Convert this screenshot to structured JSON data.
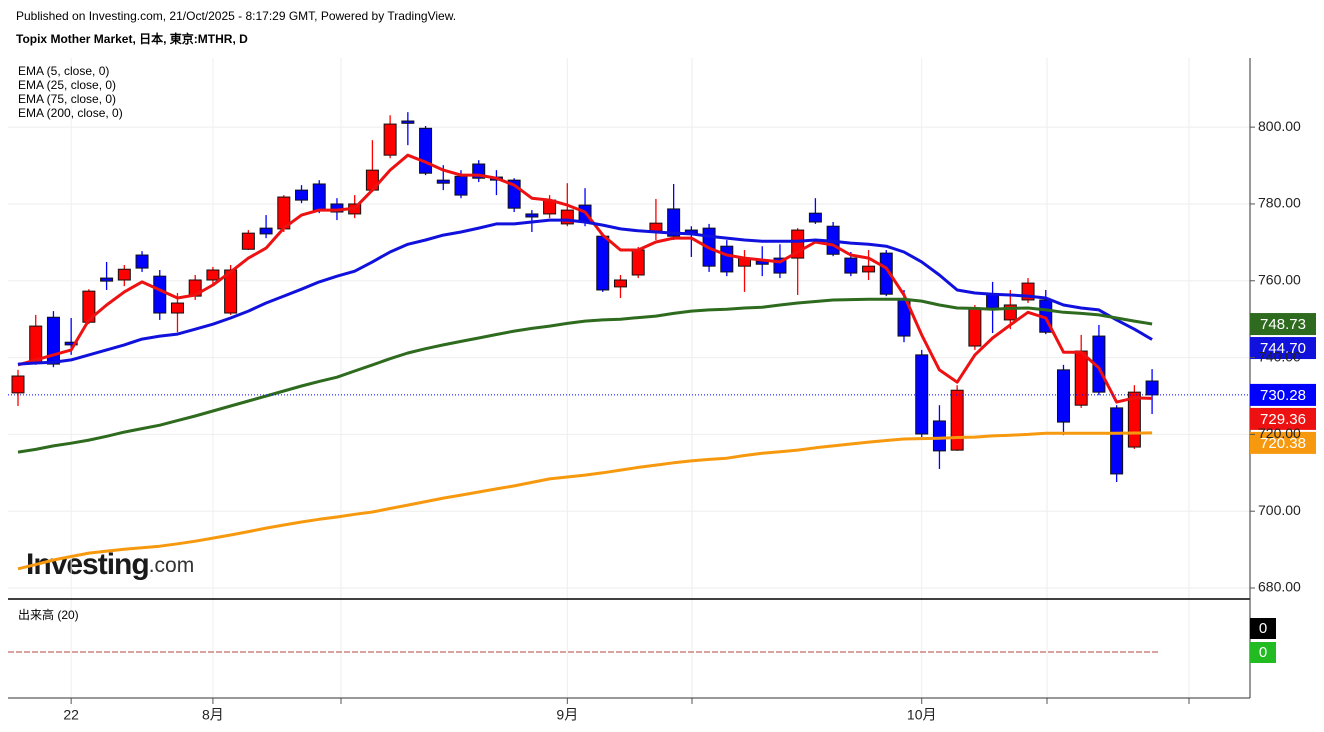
{
  "chart_data": {
    "type": "candlestick",
    "subtitle": "Published on Investing.com, 21/Oct/2025 - 8:17:29 GMT, Powered by TradingView.",
    "title": "Topix Mother Market, 日本, 東京:MTHR, D",
    "watermark": {
      "brand": "Investing",
      "suffix": ".com"
    },
    "categories": [
      null,
      null,
      null,
      "22",
      null,
      null,
      null,
      null,
      null,
      null,
      null,
      "8月",
      null,
      null,
      null,
      null,
      null,
      null,
      null,
      null,
      null,
      null,
      null,
      null,
      null,
      null,
      null,
      null,
      null,
      null,
      null,
      "9月",
      null,
      null,
      null,
      null,
      null,
      null,
      null,
      null,
      null,
      null,
      null,
      null,
      null,
      null,
      null,
      null,
      null,
      null,
      null,
      "10月",
      null,
      null,
      null,
      null,
      null,
      null,
      null,
      null,
      null,
      null,
      null,
      null,
      null
    ],
    "ylim": [
      677.4,
      818
    ],
    "yticks": [
      {
        "value": 680,
        "label": "680.00"
      },
      {
        "value": 700,
        "label": "700.00"
      },
      {
        "value": 720,
        "label": "720.00"
      },
      {
        "value": 740,
        "label": "740.00"
      },
      {
        "value": 760,
        "label": "760.00"
      },
      {
        "value": 780,
        "label": "780.00"
      },
      {
        "value": 800,
        "label": "800.00"
      }
    ],
    "grid": true,
    "up_color": "#ff0000",
    "down_color": "#0000ff",
    "open": [
      730.8,
      738.6,
      750.5,
      744.0,
      749.2,
      760.7,
      760.2,
      766.7,
      761.2,
      751.6,
      756.0,
      760.2,
      751.6,
      768.2,
      773.7,
      773.5,
      783.6,
      785.2,
      780.0,
      777.4,
      783.6,
      792.7,
      801.6,
      799.7,
      786.2,
      787.2,
      790.4,
      787.0,
      786.2,
      777.4,
      777.4,
      774.8,
      779.7,
      771.6,
      758.4,
      761.5,
      772.9,
      778.7,
      773.2,
      773.7,
      769.0,
      763.8,
      765.1,
      765.9,
      765.9,
      777.6,
      774.2,
      765.9,
      762.3,
      767.2,
      755.2,
      740.7,
      723.5,
      715.9,
      743.0,
      756.5,
      749.8,
      755.0,
      755.0,
      736.8,
      727.6,
      745.6,
      726.9,
      716.7,
      733.9
    ],
    "high": [
      736.8,
      751.1,
      752.1,
      750.3,
      757.8,
      764.9,
      764.1,
      767.7,
      762.8,
      756.8,
      761.5,
      763.6,
      764.1,
      773.2,
      777.1,
      782.3,
      784.9,
      786.2,
      781.5,
      782.3,
      796.6,
      803.1,
      803.9,
      800.3,
      790.1,
      788.8,
      791.4,
      788.8,
      786.7,
      778.4,
      782.3,
      785.4,
      784.1,
      772.2,
      761.5,
      768.8,
      781.3,
      785.2,
      774.2,
      774.8,
      770.6,
      768.0,
      769.0,
      769.5,
      773.7,
      781.5,
      775.3,
      767.5,
      768.0,
      768.0,
      757.6,
      742.0,
      727.6,
      732.8,
      753.7,
      759.7,
      757.6,
      760.7,
      757.6,
      738.1,
      745.9,
      748.5,
      727.6,
      732.8,
      737.0
    ],
    "low": [
      727.4,
      738.1,
      737.5,
      740.7,
      748.7,
      757.6,
      758.6,
      762.3,
      749.8,
      746.6,
      755.0,
      758.9,
      751.1,
      768.0,
      771.1,
      772.7,
      780.2,
      777.6,
      775.8,
      776.3,
      783.1,
      791.9,
      795.3,
      787.5,
      783.6,
      781.5,
      785.7,
      782.3,
      777.9,
      772.7,
      776.3,
      774.2,
      774.2,
      757.1,
      755.5,
      760.7,
      770.6,
      770.6,
      766.2,
      762.3,
      761.2,
      757.1,
      761.2,
      760.7,
      756.3,
      774.8,
      766.4,
      761.2,
      760.2,
      756.0,
      744.0,
      719.3,
      711.0,
      715.7,
      742.0,
      746.4,
      747.4,
      754.2,
      746.1,
      719.8,
      726.9,
      730.2,
      707.6,
      716.2,
      725.3
    ],
    "close": [
      735.2,
      748.2,
      738.3,
      743.3,
      757.3,
      759.9,
      763.0,
      763.3,
      751.6,
      754.2,
      760.2,
      762.8,
      762.8,
      772.4,
      772.2,
      781.8,
      781.0,
      778.4,
      777.9,
      780.0,
      788.8,
      800.8,
      801.0,
      788.0,
      785.4,
      782.3,
      786.7,
      786.2,
      778.9,
      776.6,
      781.0,
      778.4,
      775.3,
      757.6,
      760.2,
      768.0,
      775.0,
      771.6,
      772.4,
      763.8,
      762.3,
      765.9,
      764.3,
      762.0,
      773.2,
      775.3,
      766.9,
      762.0,
      763.8,
      756.5,
      745.6,
      720.1,
      715.7,
      731.5,
      752.9,
      752.9,
      753.7,
      759.4,
      746.6,
      723.2,
      741.7,
      731.0,
      709.7,
      731.0,
      730.28
    ],
    "price_label": "730.28",
    "series": [
      {
        "name": "EMA (5, close, 0)",
        "color": "#ee1111",
        "last_label": "729.36",
        "values": [
          738.1,
          739.4,
          740.7,
          742.0,
          749.8,
          753.7,
          757.1,
          759.7,
          757.6,
          755.5,
          756.3,
          758.9,
          762.3,
          765.9,
          768.5,
          773.7,
          777.1,
          778.4,
          778.4,
          778.9,
          783.6,
          788.8,
          792.7,
          790.9,
          788.8,
          787.5,
          787.5,
          786.7,
          784.9,
          781.5,
          781.0,
          779.7,
          777.9,
          771.9,
          768.0,
          768.0,
          770.1,
          771.1,
          771.1,
          768.5,
          766.7,
          765.9,
          765.4,
          764.9,
          767.5,
          770.1,
          769.3,
          766.7,
          765.9,
          763.3,
          756.3,
          745.9,
          736.8,
          733.6,
          740.7,
          745.1,
          748.5,
          751.8,
          750.3,
          741.4,
          741.4,
          737.3,
          728.4,
          729.5,
          729.36
        ]
      },
      {
        "name": "EMA (25, close, 0)",
        "color": "#1111dd",
        "last_label": "744.70",
        "values": [
          738.3,
          738.6,
          738.8,
          739.4,
          740.7,
          742.0,
          743.3,
          744.8,
          745.6,
          746.1,
          747.4,
          748.7,
          750.3,
          752.1,
          754.2,
          756.0,
          757.8,
          759.7,
          761.2,
          762.5,
          764.9,
          767.5,
          769.5,
          770.6,
          771.9,
          772.7,
          773.7,
          774.8,
          774.8,
          775.3,
          775.8,
          775.8,
          775.3,
          774.5,
          773.5,
          773.0,
          772.7,
          772.4,
          772.2,
          771.6,
          771.1,
          770.6,
          770.3,
          770.3,
          770.3,
          770.6,
          770.3,
          769.8,
          769.5,
          769.0,
          767.5,
          764.9,
          761.5,
          757.6,
          756.8,
          756.5,
          756.3,
          756.0,
          755.5,
          753.7,
          752.9,
          752.4,
          749.8,
          747.4,
          744.7
        ]
      },
      {
        "name": "EMA (75, close, 0)",
        "color": "#2e6b1e",
        "last_label": "748.73",
        "values": [
          715.4,
          716.1,
          717.0,
          717.7,
          718.5,
          719.5,
          720.6,
          721.5,
          722.4,
          723.6,
          724.8,
          726.1,
          727.4,
          728.7,
          730.0,
          731.3,
          732.6,
          733.8,
          734.9,
          736.5,
          738.1,
          739.7,
          741.2,
          742.3,
          743.3,
          744.2,
          745.1,
          746.0,
          746.9,
          747.6,
          748.2,
          748.9,
          749.5,
          749.8,
          750.0,
          750.4,
          750.8,
          751.5,
          752.1,
          752.4,
          752.6,
          752.9,
          753.1,
          753.7,
          754.2,
          754.6,
          755.0,
          755.1,
          755.2,
          755.2,
          755.2,
          754.7,
          753.7,
          752.9,
          752.8,
          752.6,
          752.8,
          752.9,
          752.4,
          751.8,
          751.5,
          751.1,
          750.3,
          749.5,
          748.73
        ]
      },
      {
        "name": "EMA (200, close, 0)",
        "color": "#f7990f",
        "last_label": "720.38",
        "values": [
          685.0,
          686.1,
          687.3,
          688.2,
          689.1,
          689.6,
          690.1,
          690.5,
          690.9,
          691.5,
          692.2,
          693.0,
          693.8,
          694.7,
          695.6,
          696.4,
          697.2,
          697.9,
          698.5,
          699.2,
          699.8,
          700.7,
          701.6,
          702.5,
          703.4,
          704.2,
          705.0,
          705.8,
          706.6,
          707.5,
          708.4,
          708.9,
          709.4,
          710.0,
          710.7,
          711.4,
          712.0,
          712.6,
          713.1,
          713.5,
          713.8,
          714.5,
          715.1,
          715.5,
          715.9,
          716.5,
          717.0,
          717.5,
          718.0,
          718.4,
          718.8,
          718.9,
          719.0,
          719.2,
          719.3,
          719.6,
          719.8,
          720.0,
          720.3,
          720.3,
          720.3,
          720.3,
          720.3,
          720.35,
          720.38
        ]
      }
    ],
    "volume": {
      "title": "出来高 (20)",
      "value": 0,
      "average": 0,
      "value_color": "#000000",
      "average_color": "#22bb22"
    }
  }
}
